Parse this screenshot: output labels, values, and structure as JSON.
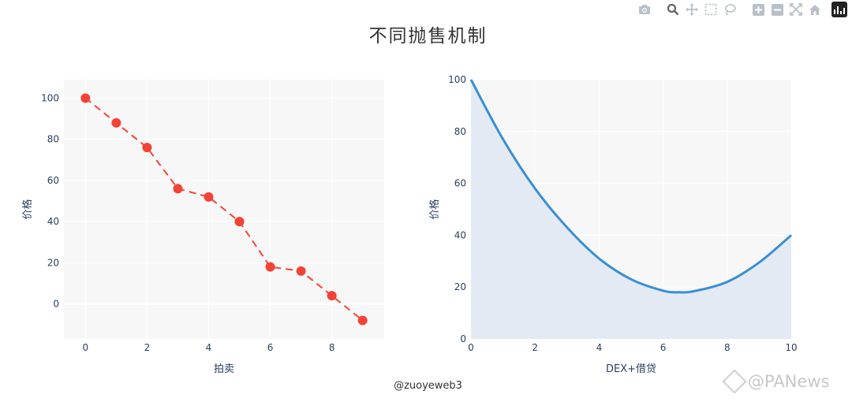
{
  "title": "不同抛售机制",
  "credit": "@zuoyeweb3",
  "watermark": "@PANews",
  "modebar": {
    "icons": [
      "camera-icon",
      "zoom-icon",
      "pan-icon",
      "box-select-icon",
      "lasso-icon",
      "zoom-in-icon",
      "zoom-out-icon",
      "autoscale-icon",
      "reset-axes-icon",
      "plotly-logo-icon"
    ]
  },
  "colors": {
    "auction": "#f44336",
    "dex": "#3a8fd3",
    "dex_fill": "#e3eaf3",
    "plot_bg": "#f7f7f7"
  },
  "chart_data": [
    {
      "type": "line",
      "mode": "lines+markers",
      "line_dash": "dash",
      "xlabel": "拍卖",
      "ylabel": "价格",
      "xlim": [
        -0.7,
        9.7
      ],
      "ylim": [
        -17,
        109
      ],
      "xticks": [
        0,
        2,
        4,
        6,
        8
      ],
      "yticks": [
        0,
        20,
        40,
        60,
        80,
        100
      ],
      "series": [
        {
          "x": [
            0,
            1,
            2,
            3,
            4,
            5,
            6,
            7,
            8,
            9
          ],
          "y": [
            100,
            88,
            76,
            56,
            52,
            40,
            18,
            16,
            4,
            -8
          ]
        }
      ]
    },
    {
      "type": "area",
      "xlabel": "DEX+借贷",
      "ylabel": "价格",
      "xlim": [
        0,
        10
      ],
      "ylim": [
        0,
        100
      ],
      "xticks": [
        0,
        2,
        4,
        6,
        8,
        10
      ],
      "yticks": [
        0,
        20,
        40,
        60,
        80,
        100
      ],
      "series": [
        {
          "x": [
            0,
            1,
            2,
            3,
            4,
            5,
            6,
            6.5,
            7,
            8,
            9,
            10
          ],
          "y": [
            100,
            77,
            58,
            43,
            31,
            23,
            18.6,
            18,
            18.5,
            22,
            29.5,
            40
          ]
        }
      ]
    }
  ]
}
